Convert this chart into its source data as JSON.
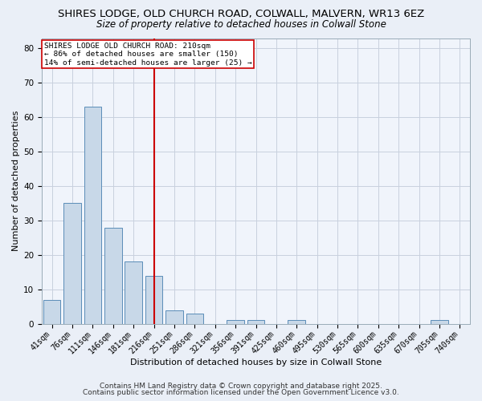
{
  "title1": "SHIRES LODGE, OLD CHURCH ROAD, COLWALL, MALVERN, WR13 6EZ",
  "title2": "Size of property relative to detached houses in Colwall Stone",
  "xlabel": "Distribution of detached houses by size in Colwall Stone",
  "ylabel": "Number of detached properties",
  "bin_labels": [
    "41sqm",
    "76sqm",
    "111sqm",
    "146sqm",
    "181sqm",
    "216sqm",
    "251sqm",
    "286sqm",
    "321sqm",
    "356sqm",
    "391sqm",
    "425sqm",
    "460sqm",
    "495sqm",
    "530sqm",
    "565sqm",
    "600sqm",
    "635sqm",
    "670sqm",
    "705sqm",
    "740sqm"
  ],
  "bar_heights": [
    7,
    35,
    63,
    28,
    18,
    14,
    4,
    3,
    0,
    1,
    1,
    0,
    1,
    0,
    0,
    0,
    0,
    0,
    0,
    1,
    0
  ],
  "bar_color": "#c8d8e8",
  "bar_edge_color": "#5b8db8",
  "vline_x_idx": 5,
  "vline_color": "#cc0000",
  "annotation_text": "SHIRES LODGE OLD CHURCH ROAD: 210sqm\n← 86% of detached houses are smaller (150)\n14% of semi-detached houses are larger (25) →",
  "annotation_box_color": "#ffffff",
  "annotation_box_edge": "#cc0000",
  "ylim": [
    0,
    83
  ],
  "yticks": [
    0,
    10,
    20,
    30,
    40,
    50,
    60,
    70,
    80
  ],
  "footer1": "Contains HM Land Registry data © Crown copyright and database right 2025.",
  "footer2": "Contains public sector information licensed under the Open Government Licence v3.0.",
  "bg_color": "#eaeff7",
  "plot_bg_color": "#f0f4fb",
  "grid_color": "#c8d0de",
  "title_fontsize": 9.5,
  "subtitle_fontsize": 8.5,
  "axis_fontsize": 8,
  "tick_fontsize": 7,
  "footer_fontsize": 6.5
}
